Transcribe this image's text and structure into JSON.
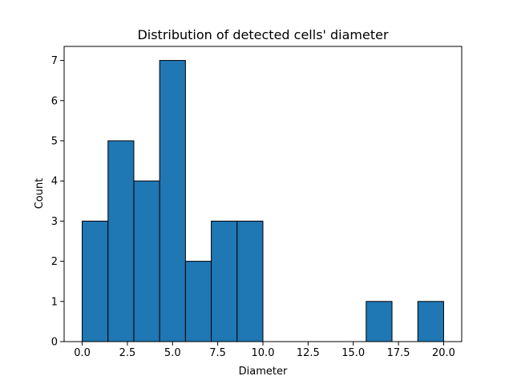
{
  "chart_data": {
    "type": "bar",
    "title": "Distribution of detected cells' diameter",
    "xlabel": "Diameter",
    "ylabel": "Count",
    "bin_edges": [
      0.0,
      1.4286,
      2.8571,
      4.2857,
      5.7143,
      7.1429,
      8.5714,
      10.0,
      11.4286,
      12.8571,
      14.2857,
      15.7143,
      17.1429,
      18.5714,
      20.0
    ],
    "values": [
      3,
      5,
      4,
      7,
      2,
      3,
      3,
      0,
      0,
      0,
      0,
      1,
      0,
      1
    ],
    "xlim": [
      -1.0,
      21.0
    ],
    "ylim": [
      0,
      7.35
    ],
    "xticks": [
      0.0,
      2.5,
      5.0,
      7.5,
      10.0,
      12.5,
      15.0,
      17.5,
      20.0
    ],
    "xtick_labels": [
      "0.0",
      "2.5",
      "5.0",
      "7.5",
      "10.0",
      "12.5",
      "15.0",
      "17.5",
      "20.0"
    ],
    "yticks": [
      0,
      1,
      2,
      3,
      4,
      5,
      6,
      7
    ],
    "ytick_labels": [
      "0",
      "1",
      "2",
      "3",
      "4",
      "5",
      "6",
      "7"
    ],
    "grid": false,
    "bar_color": "#1f77b4",
    "edge_color": "#000000"
  }
}
